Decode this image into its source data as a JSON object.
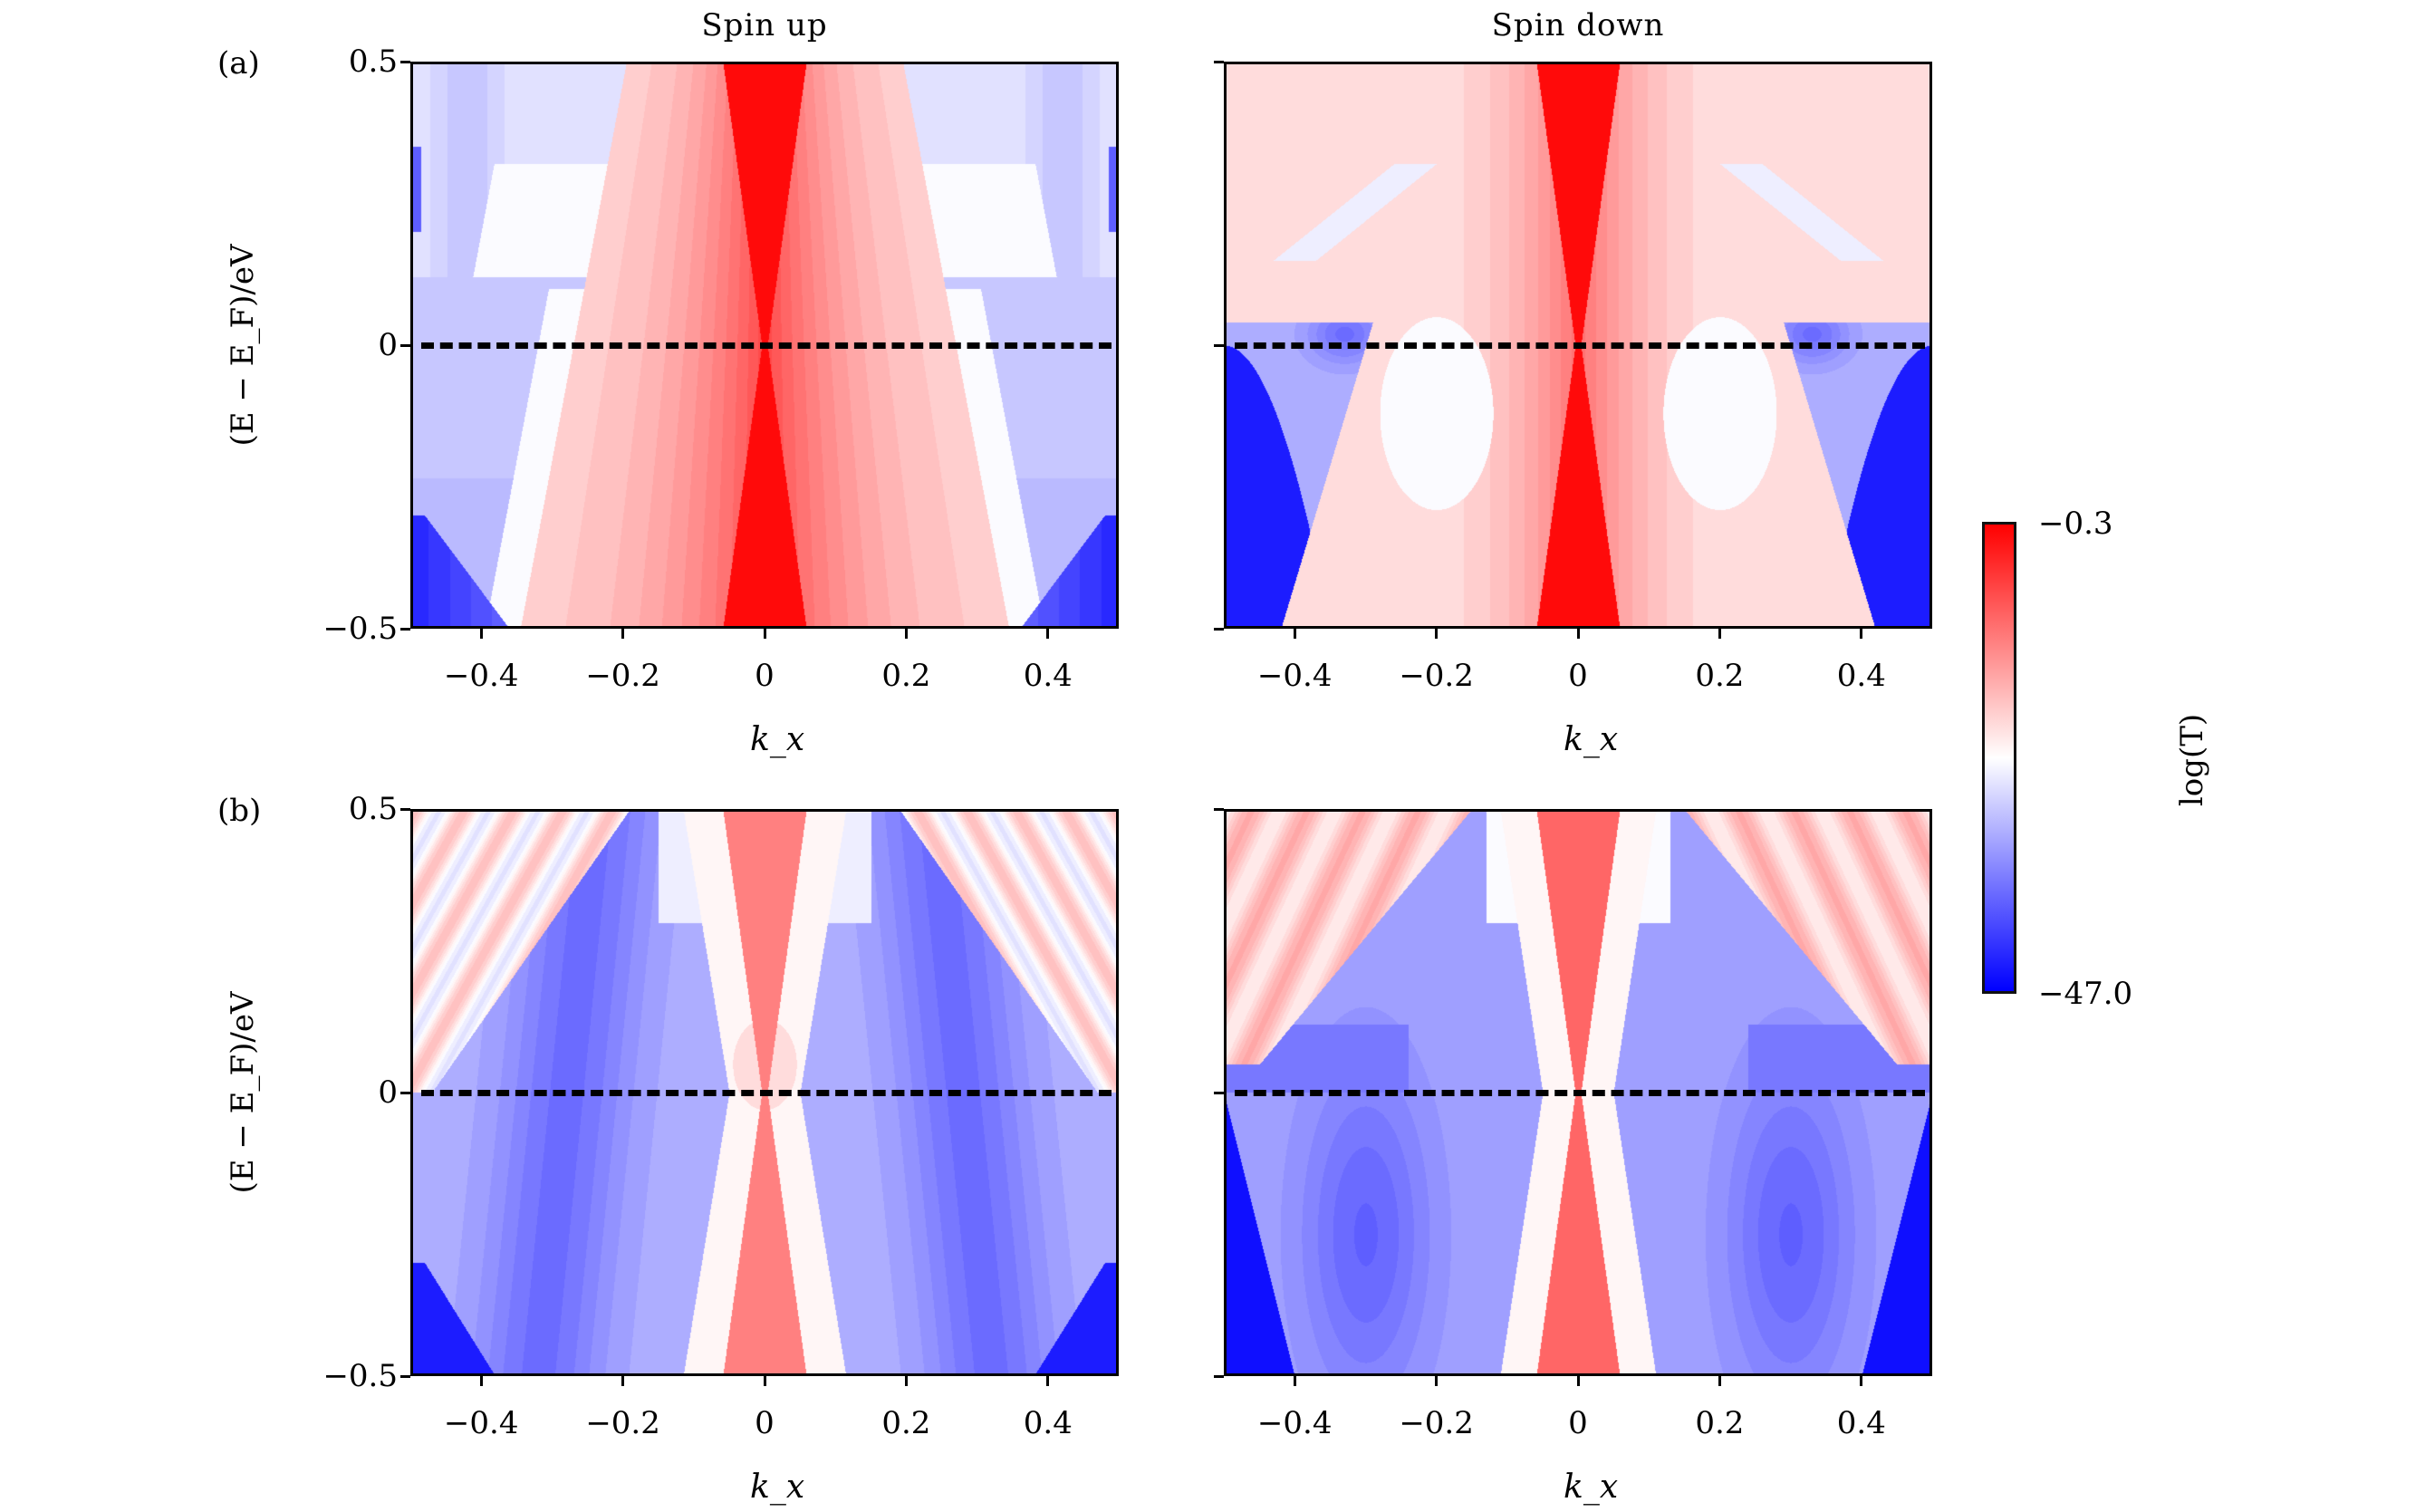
{
  "chart_data": {
    "type": "heatmap",
    "xlabel": "k_x",
    "ylabel": "(E − E_F)/eV",
    "xlim": [
      -0.5,
      0.5
    ],
    "ylim": [
      -0.5,
      0.5
    ],
    "xticks": [
      -0.4,
      -0.2,
      0,
      0.2,
      0.4
    ],
    "xtick_labels": [
      "−0.4",
      "−0.2",
      "0",
      "0.2",
      "0.4"
    ],
    "yticks": [
      0.5,
      0,
      -0.5
    ],
    "ytick_labels": [
      "0.5",
      "0",
      "−0.5"
    ],
    "fermi_level_line": 0,
    "column_titles": [
      "Spin up",
      "Spin down"
    ],
    "row_labels": [
      "(a)",
      "(b)"
    ],
    "colorbar": {
      "label": "log(T)",
      "min": -47.0,
      "max": -0.3,
      "min_label": "−47.0",
      "max_label": "−0.3",
      "colormap": "bwr",
      "low_color": "#0000ff",
      "mid_color": "#ffffff",
      "high_color": "#ff0000"
    },
    "panels": [
      {
        "id": "a_up",
        "row": "(a)",
        "column": "Spin up",
        "central_cone_logT": -1.2,
        "background_logT": -29,
        "corner_logT": -40
      },
      {
        "id": "a_down",
        "row": "(a)",
        "column": "Spin down",
        "central_cone_logT": -0.8,
        "background_logT": -20,
        "corner_logT": -45
      },
      {
        "id": "b_up",
        "row": "(b)",
        "column": "Spin up",
        "central_cone_logT": -12,
        "background_logT": -33,
        "corner_logT": -45
      },
      {
        "id": "b_down",
        "row": "(b)",
        "column": "Spin down",
        "central_cone_logT": -10,
        "background_logT": -34,
        "corner_logT": -46
      }
    ]
  }
}
